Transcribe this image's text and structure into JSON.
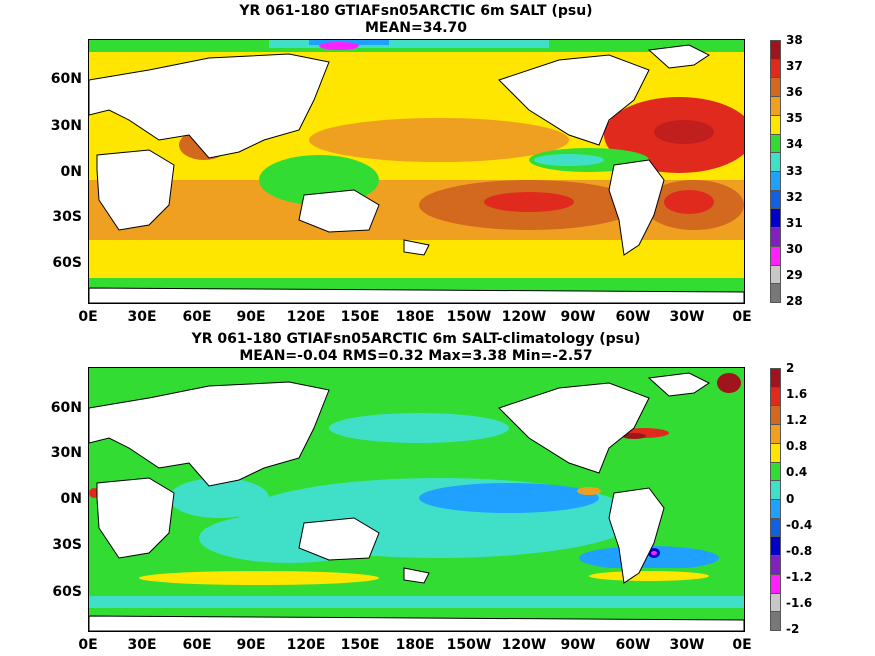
{
  "panels": [
    {
      "title_line1": "YR 061-180 GTIAFsn05ARCTIC 6m SALT (psu)",
      "title_line2": "MEAN=34.70",
      "lat_labels": [
        "60N",
        "30N",
        "0N",
        "30S",
        "60S"
      ],
      "lon_labels": [
        "0E",
        "30E",
        "60E",
        "90E",
        "120E",
        "150E",
        "180E",
        "150W",
        "120W",
        "90W",
        "60W",
        "30W",
        "0E"
      ],
      "colorbar_ticks": [
        "38",
        "37",
        "36",
        "35",
        "34",
        "33",
        "32",
        "31",
        "30",
        "29",
        "28"
      ],
      "colorbar_colors": [
        "#a0141e",
        "#e02a1e",
        "#d2691e",
        "#f0a020",
        "#ffe600",
        "#32dc32",
        "#40e0c8",
        "#20a0ff",
        "#1060e0",
        "#0000c8",
        "#8020c0",
        "#ff20ff",
        "#c8c8c8",
        "#787878"
      ]
    },
    {
      "title_line1": "YR 061-180 GTIAFsn05ARCTIC 6m SALT-climatology (psu)",
      "title_line2": "MEAN=-0.04   RMS=0.32   Max=3.38   Min=-2.57",
      "lat_labels": [
        "60N",
        "30N",
        "0N",
        "30S",
        "60S"
      ],
      "lon_labels": [
        "0E",
        "30E",
        "60E",
        "90E",
        "120E",
        "150E",
        "180E",
        "150W",
        "120W",
        "90W",
        "60W",
        "30W",
        "0E"
      ],
      "colorbar_ticks": [
        "2",
        "1.6",
        "1.2",
        "0.8",
        "0.4",
        "0",
        "-0.4",
        "-0.8",
        "-1.2",
        "-1.6",
        "-2"
      ],
      "colorbar_colors": [
        "#a0141e",
        "#e02a1e",
        "#d2691e",
        "#f0a020",
        "#ffe600",
        "#32dc32",
        "#40e0c8",
        "#20a0ff",
        "#1060e0",
        "#0000c8",
        "#8020c0",
        "#ff20ff",
        "#c8c8c8",
        "#787878"
      ]
    }
  ]
}
